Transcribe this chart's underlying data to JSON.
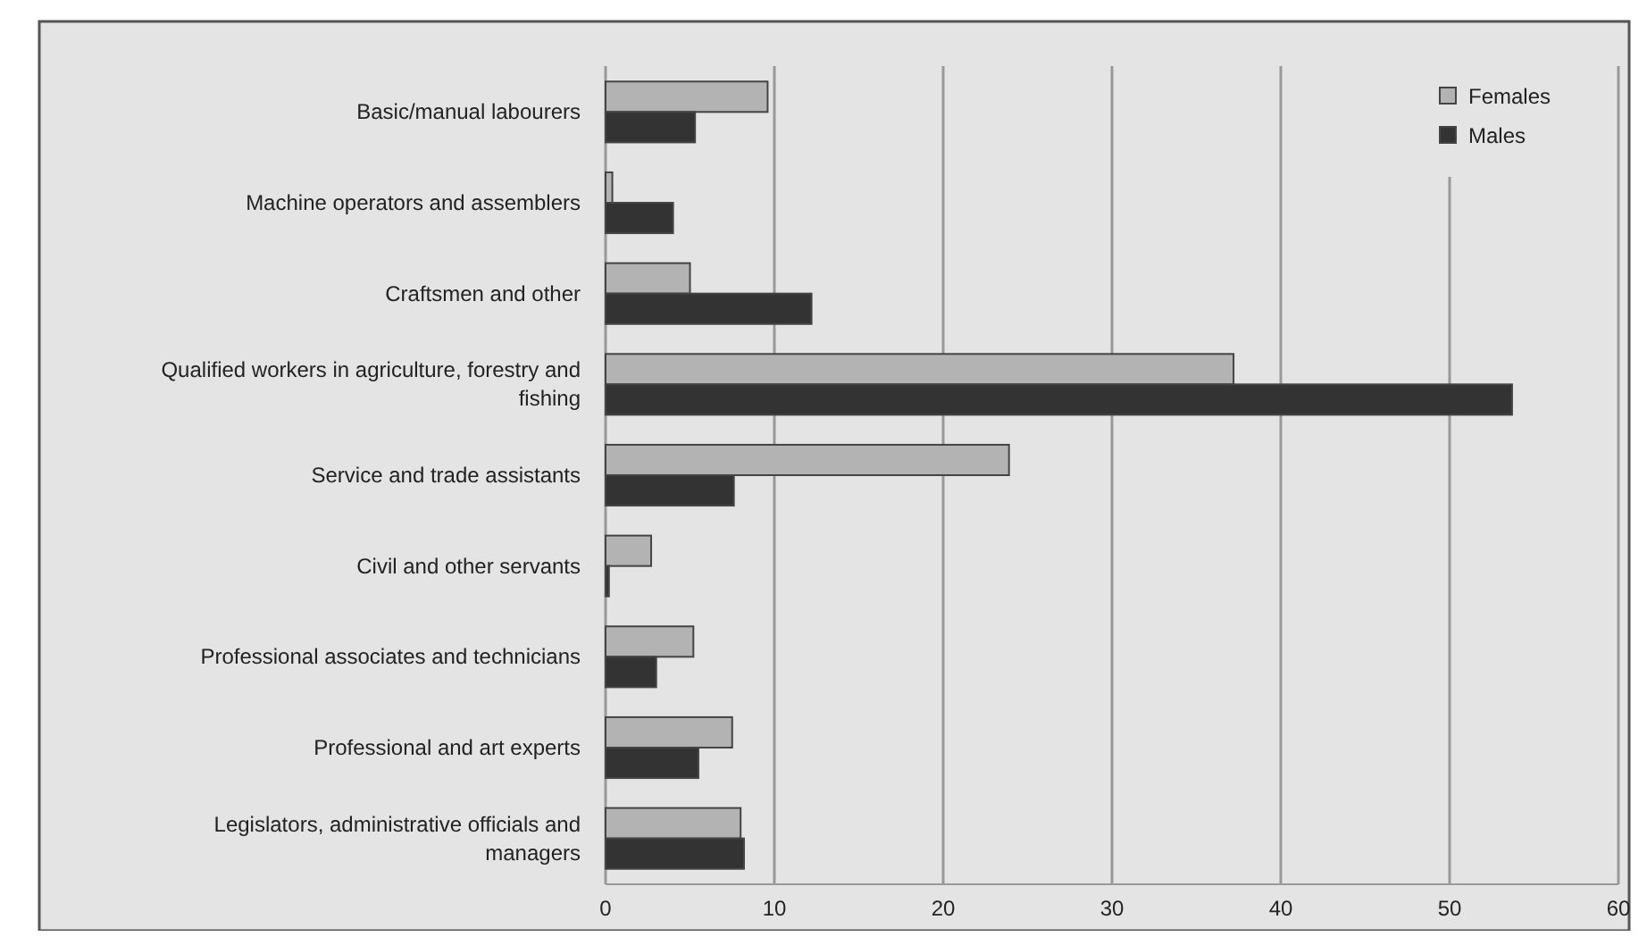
{
  "chart_data": {
    "type": "bar",
    "orientation": "horizontal",
    "categories": [
      "Basic/manual labourers",
      "Machine operators and assemblers",
      "Craftsmen and other",
      "Qualified workers in agriculture, forestry and fishing",
      "Service and trade assistants",
      "Civil and other servants",
      "Professional associates and technicians",
      "Professional and art experts",
      "Legislators, administrative officials and managers"
    ],
    "series": [
      {
        "name": "Females",
        "color": "#b3b3b3",
        "values": [
          9.6,
          0.4,
          5.0,
          37.2,
          23.9,
          2.7,
          5.2,
          7.5,
          8.0
        ]
      },
      {
        "name": "Males",
        "color": "#333333",
        "values": [
          5.3,
          4.0,
          12.2,
          53.7,
          7.6,
          0.2,
          3.0,
          5.5,
          8.2
        ]
      }
    ],
    "xlim": [
      0,
      60
    ],
    "xticks": [
      0,
      10,
      20,
      30,
      40,
      50,
      60
    ],
    "grid": "x",
    "legend": "top right"
  }
}
